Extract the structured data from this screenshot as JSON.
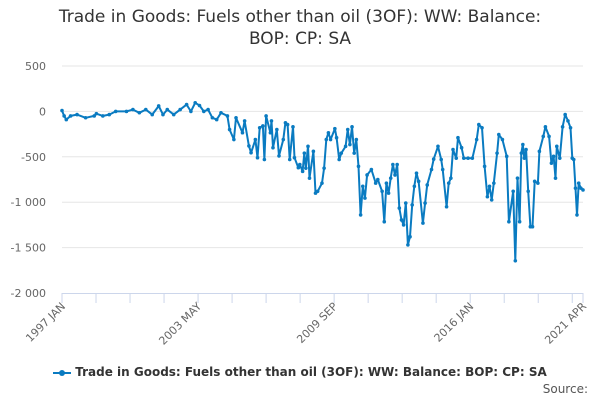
{
  "chart_data": {
    "type": "line",
    "title": "Trade in Goods: Fuels other than oil (3OF): WW: Balance: BOP: CP: SA",
    "xlabel": "",
    "ylabel": "",
    "xlim": [
      1997.0,
      2021.25
    ],
    "ylim": [
      -2000,
      500
    ],
    "yticks": [
      500,
      0,
      -500,
      -1000,
      -1500,
      -2000
    ],
    "ytick_labels": [
      "500",
      "0",
      "-500",
      "-1 000",
      "-1 500",
      "-2 000"
    ],
    "xtick_labels": [
      {
        "label": "1997 JAN",
        "x": 1997.0
      },
      {
        "label": "2003 MAY",
        "x": 2003.33
      },
      {
        "label": "2009 SEP",
        "x": 2009.67
      },
      {
        "label": "2016 JAN",
        "x": 2016.0
      },
      {
        "label": "2021 APR",
        "x": 2021.25
      }
    ],
    "grid": true,
    "legend_position": "bottom",
    "color": "#0a7bc1",
    "series": [
      {
        "name": "Trade in Goods: Fuels other than oil (3OF): WW: Balance: BOP: CP: SA",
        "x": [
          1997.0,
          1997.1,
          1997.2,
          1997.4,
          1997.7,
          1998.1,
          1998.5,
          1998.6,
          1998.9,
          1999.2,
          1999.5,
          2000.0,
          2000.3,
          2000.6,
          2000.9,
          2001.2,
          2001.5,
          2001.7,
          2001.9,
          2002.2,
          2002.5,
          2002.8,
          2003.0,
          2003.2,
          2003.4,
          2003.6,
          2003.8,
          2004.0,
          2004.2,
          2004.4,
          2004.7,
          2004.8,
          2005.0,
          2005.1,
          2005.4,
          2005.5,
          2005.7,
          2005.8,
          2006.0,
          2006.1,
          2006.2,
          2006.35,
          2006.42,
          2006.5,
          2006.7,
          2006.75,
          2006.82,
          2007.0,
          2007.1,
          2007.3,
          2007.4,
          2007.5,
          2007.6,
          2007.75,
          2007.82,
          2008.0,
          2008.07,
          2008.2,
          2008.28,
          2008.35,
          2008.45,
          2008.52,
          2008.7,
          2008.8,
          2008.9,
          2009.1,
          2009.2,
          2009.3,
          2009.4,
          2009.5,
          2009.7,
          2009.78,
          2009.9,
          2010.0,
          2010.2,
          2010.3,
          2010.4,
          2010.5,
          2010.6,
          2010.7,
          2010.8,
          2010.9,
          2011.0,
          2011.1,
          2011.2,
          2011.4,
          2011.6,
          2011.7,
          2011.9,
          2012.0,
          2012.1,
          2012.2,
          2012.3,
          2012.4,
          2012.5,
          2012.6,
          2012.7,
          2012.8,
          2012.9,
          2013.0,
          2013.1,
          2013.2,
          2013.3,
          2013.4,
          2013.5,
          2013.6,
          2013.8,
          2013.9,
          2014.0,
          2014.2,
          2014.3,
          2014.5,
          2014.65,
          2014.72,
          2014.9,
          2015.0,
          2015.1,
          2015.2,
          2015.35,
          2015.43,
          2015.6,
          2015.7,
          2015.9,
          2016.1,
          2016.3,
          2016.4,
          2016.55,
          2016.67,
          2016.8,
          2016.9,
          2017.0,
          2017.1,
          2017.25,
          2017.33,
          2017.5,
          2017.7,
          2017.8,
          2018.0,
          2018.1,
          2018.2,
          2018.3,
          2018.38,
          2018.45,
          2018.52,
          2018.6,
          2018.7,
          2018.8,
          2018.9,
          2019.0,
          2019.15,
          2019.22,
          2019.4,
          2019.5,
          2019.67,
          2019.78,
          2019.88,
          2019.97,
          2020.03,
          2020.17,
          2020.3,
          2020.42,
          2020.55,
          2020.67,
          2020.75,
          2020.82,
          2020.9,
          2020.97,
          2021.05,
          2021.15,
          2021.25
        ],
        "values": [
          10,
          -50,
          -90,
          -50,
          -35,
          -70,
          -50,
          -25,
          -50,
          -35,
          0,
          0,
          20,
          -15,
          20,
          -35,
          60,
          -35,
          20,
          -35,
          20,
          75,
          0,
          95,
          65,
          0,
          20,
          -70,
          -90,
          -15,
          -50,
          -200,
          -310,
          -70,
          -235,
          -105,
          -380,
          -455,
          -310,
          -510,
          -180,
          -160,
          -530,
          -50,
          -235,
          -105,
          -400,
          -200,
          -490,
          -310,
          -125,
          -145,
          -530,
          -170,
          -510,
          -620,
          -585,
          -660,
          -460,
          -625,
          -385,
          -735,
          -440,
          -900,
          -880,
          -790,
          -625,
          -310,
          -235,
          -310,
          -190,
          -290,
          -530,
          -460,
          -385,
          -200,
          -365,
          -170,
          -460,
          -310,
          -605,
          -1140,
          -825,
          -955,
          -700,
          -640,
          -790,
          -750,
          -880,
          -1215,
          -790,
          -900,
          -735,
          -585,
          -700,
          -585,
          -1065,
          -1195,
          -1250,
          -1010,
          -1470,
          -1380,
          -1030,
          -825,
          -680,
          -770,
          -1230,
          -1010,
          -810,
          -640,
          -525,
          -385,
          -530,
          -640,
          -1050,
          -790,
          -735,
          -420,
          -515,
          -290,
          -400,
          -515,
          -515,
          -515,
          -310,
          -145,
          -180,
          -605,
          -940,
          -825,
          -975,
          -790,
          -460,
          -255,
          -310,
          -495,
          -1215,
          -880,
          -1645,
          -735,
          -1215,
          -460,
          -365,
          -515,
          -420,
          -880,
          -1270,
          -1270,
          -770,
          -790,
          -440,
          -275,
          -170,
          -275,
          -570,
          -495,
          -735,
          -385,
          -515,
          -170,
          -35,
          -105,
          -180,
          -515,
          -530,
          -845,
          -1140,
          -790,
          -845,
          -865
        ]
      }
    ]
  },
  "legend": {
    "label": "Trade in Goods: Fuels other than oil (3OF): WW: Balance: BOP: CP: SA"
  },
  "title_lines": [
    "Trade in Goods: Fuels other than oil (3OF): WW: Balance:",
    "BOP: CP: SA"
  ],
  "source": "Source:"
}
